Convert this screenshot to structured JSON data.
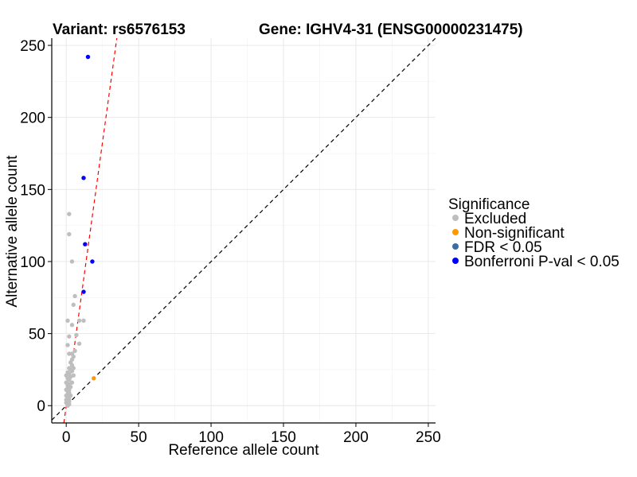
{
  "chart_data": {
    "type": "scatter",
    "title_left": "Variant: rs6576153",
    "title_right": "Gene: IGHV4-31 (ENSG00000231475)",
    "xlabel": "Reference allele count",
    "ylabel": "Alternative allele count",
    "xlim": [
      -10,
      255
    ],
    "ylim": [
      -12,
      255
    ],
    "x_ticks": [
      0,
      50,
      100,
      150,
      200,
      250
    ],
    "y_ticks": [
      0,
      50,
      100,
      150,
      200,
      250
    ],
    "x_minor": [
      25,
      75,
      125,
      175,
      225
    ],
    "y_minor": [
      25,
      75,
      125,
      175,
      225
    ],
    "grid": true,
    "reference_lines": [
      {
        "name": "identity",
        "slope": 1,
        "intercept": 0,
        "color": "#000000",
        "dash": "dashed"
      },
      {
        "name": "fit",
        "slope": 7.3,
        "intercept": 0,
        "color": "#ff0000",
        "dash": "dashed"
      }
    ],
    "legend": {
      "title": "Significance",
      "position": "right",
      "entries": [
        {
          "label": "Excluded",
          "color": "#bebebe"
        },
        {
          "label": "Non-significant",
          "color": "#ff9900"
        },
        {
          "label": "FDR < 0.05",
          "color": "#3a6ea5"
        },
        {
          "label": "Bonferroni P-val < 0.05",
          "color": "#0000ff"
        }
      ]
    },
    "series": [
      {
        "name": "Excluded",
        "color": "#bebebe",
        "points": [
          [
            1,
            0
          ],
          [
            1,
            1
          ],
          [
            2,
            1
          ],
          [
            0,
            2
          ],
          [
            1,
            3
          ],
          [
            2,
            3
          ],
          [
            0,
            4
          ],
          [
            1,
            5
          ],
          [
            2,
            5
          ],
          [
            1,
            6
          ],
          [
            0,
            7
          ],
          [
            3,
            7
          ],
          [
            1,
            8
          ],
          [
            2,
            9
          ],
          [
            1,
            10
          ],
          [
            0,
            11
          ],
          [
            2,
            11
          ],
          [
            1,
            12
          ],
          [
            3,
            13
          ],
          [
            1,
            14
          ],
          [
            2,
            15
          ],
          [
            0,
            16
          ],
          [
            4,
            16
          ],
          [
            2,
            18
          ],
          [
            1,
            19
          ],
          [
            3,
            20
          ],
          [
            0,
            21
          ],
          [
            5,
            21
          ],
          [
            2,
            22
          ],
          [
            1,
            23
          ],
          [
            4,
            24
          ],
          [
            3,
            25
          ],
          [
            2,
            26
          ],
          [
            5,
            26
          ],
          [
            4,
            28
          ],
          [
            3,
            30
          ],
          [
            4,
            32
          ],
          [
            5,
            34
          ],
          [
            2,
            36
          ],
          [
            4,
            36
          ],
          [
            6,
            38
          ],
          [
            1,
            42
          ],
          [
            9,
            43
          ],
          [
            2,
            48
          ],
          [
            7,
            49
          ],
          [
            4,
            56
          ],
          [
            1,
            59
          ],
          [
            9,
            59
          ],
          [
            5,
            70
          ],
          [
            6,
            76
          ],
          [
            4,
            100
          ],
          [
            2,
            119
          ],
          [
            2,
            133
          ],
          [
            12,
            59
          ]
        ]
      },
      {
        "name": "Non-significant",
        "color": "#ff9900",
        "points": [
          [
            19,
            19
          ]
        ]
      },
      {
        "name": "FDR < 0.05",
        "color": "#3a6ea5",
        "points": []
      },
      {
        "name": "Bonferroni P-val < 0.05",
        "color": "#0000ff",
        "points": [
          [
            15,
            242
          ],
          [
            12,
            158
          ],
          [
            13,
            112
          ],
          [
            18,
            100
          ],
          [
            12,
            79
          ]
        ]
      }
    ]
  }
}
